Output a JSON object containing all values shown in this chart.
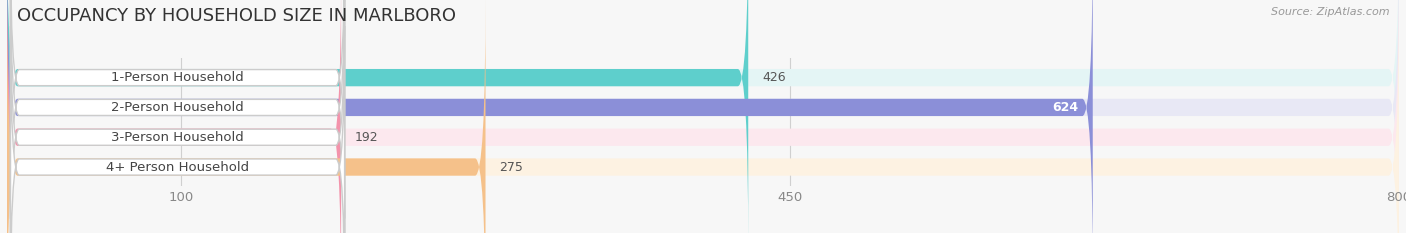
{
  "title": "OCCUPANCY BY HOUSEHOLD SIZE IN MARLBORO",
  "source": "Source: ZipAtlas.com",
  "categories": [
    "1-Person Household",
    "2-Person Household",
    "3-Person Household",
    "4+ Person Household"
  ],
  "values": [
    426,
    624,
    192,
    275
  ],
  "bar_colors": [
    "#5ecfcc",
    "#8b8fd8",
    "#f393ab",
    "#f5c18a"
  ],
  "bar_bg_colors": [
    "#e4f5f5",
    "#e8e8f5",
    "#fce8ee",
    "#fdf2e2"
  ],
  "xlim": [
    0,
    800
  ],
  "xticks": [
    100,
    450,
    800
  ],
  "title_fontsize": 13,
  "label_fontsize": 9.5,
  "value_fontsize": 9,
  "source_fontsize": 8,
  "bar_height": 0.58,
  "label_text_color": "#444444",
  "title_color": "#333333",
  "source_color": "#999999",
  "value_color_inside": "#ffffff",
  "value_color_outside": "#555555",
  "inside_threshold": 500,
  "bg_color": "#f7f7f7",
  "grid_color": "#d0d0d0"
}
